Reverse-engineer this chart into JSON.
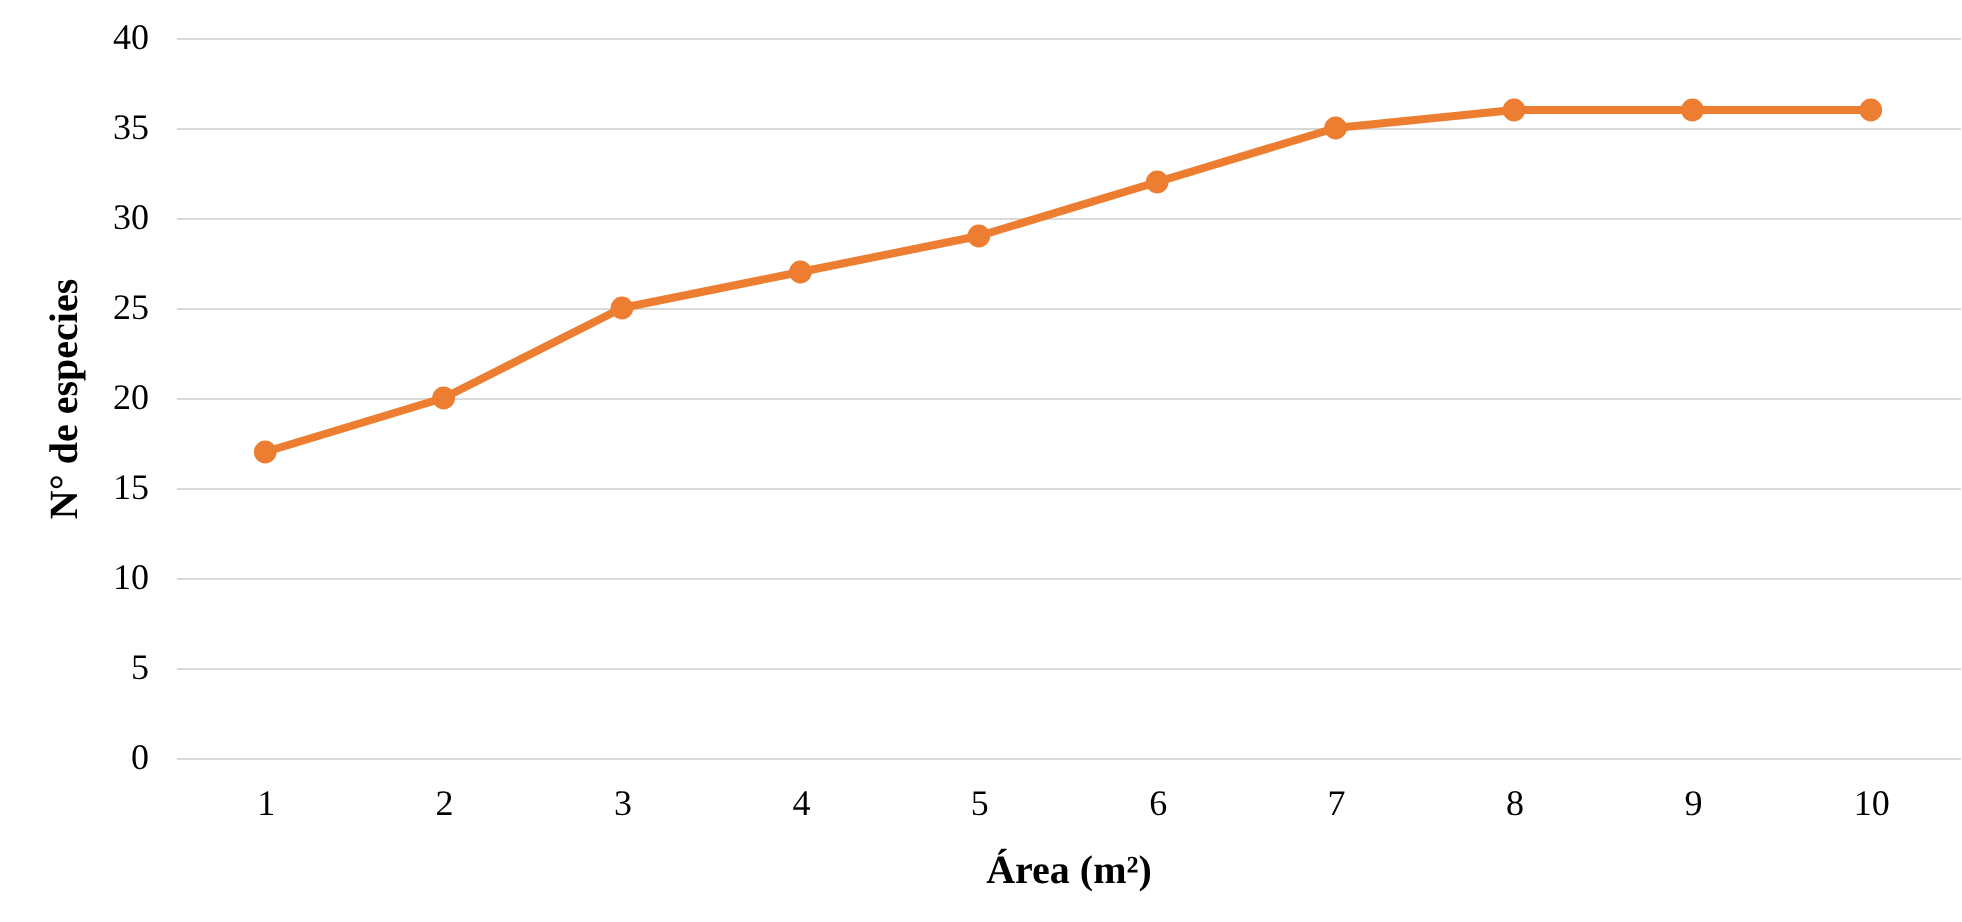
{
  "chart_data": {
    "type": "line",
    "xlabel": "Área (m²)",
    "ylabel": "N° de especies",
    "categories": [
      "1",
      "2",
      "3",
      "4",
      "5",
      "6",
      "7",
      "8",
      "9",
      "10"
    ],
    "series": [
      {
        "color": "#ed7d31",
        "values": [
          17,
          20,
          25,
          27,
          29,
          32,
          35,
          36,
          36,
          36
        ]
      }
    ],
    "ylim": [
      0,
      40
    ],
    "yticks": [
      0,
      5,
      10,
      15,
      20,
      25,
      30,
      35,
      40
    ],
    "grid": "y",
    "marker": "circle",
    "line_style": "solid"
  }
}
